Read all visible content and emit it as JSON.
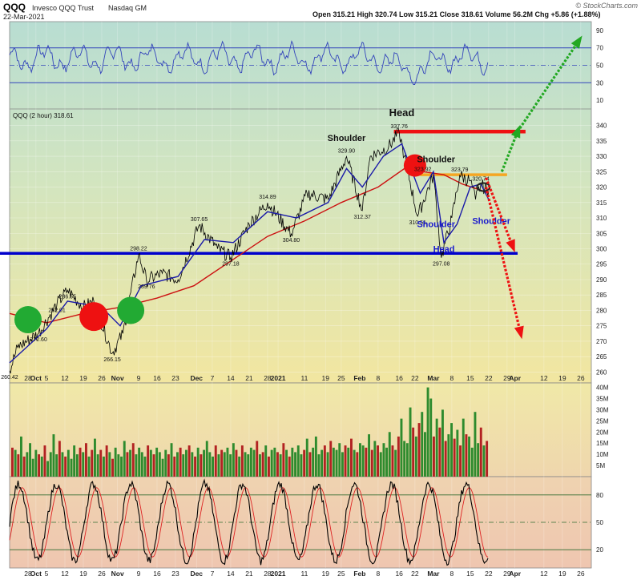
{
  "header": {
    "ticker": "QQQ",
    "name": "Invesco QQQ Trust",
    "exchange": "Nasdaq GM",
    "date": "22-Mar-2021",
    "ohlc_text": "Open 315.21  High 320.74  Low 315.21  Close 318.61  Volume 56.2M  Chg +5.86 (+1.88%)",
    "brand": "© StockCharts.com"
  },
  "colors": {
    "price_line": "#000000",
    "ma_short": "#1a1aa8",
    "ma_long": "#cc1111",
    "support": "#0000cc",
    "resistance": "#ee1111",
    "neckline": "#f5a623",
    "bull_arrow": "#22a822",
    "bear_arrow": "#ee1111",
    "volume_up": "#2e8b2e",
    "volume_down": "#b22222",
    "rsi_line": "#3344bb",
    "stoch_k": "#000000",
    "stoch_d": "#dd2222"
  },
  "chart_data": {
    "type": "line",
    "price_legend": "QQQ (2 hour) 318.61",
    "x_axis_labels": [
      "28",
      "Oct",
      "5",
      "12",
      "19",
      "26",
      "Nov",
      "9",
      "16",
      "23",
      "Dec",
      "7",
      "14",
      "21",
      "28",
      "2021",
      "11",
      "19",
      "25",
      "Feb",
      "8",
      "16",
      "22",
      "Mar",
      "8",
      "15",
      "22",
      "29",
      "Apr",
      "12",
      "19",
      "26"
    ],
    "price_axis": [
      260,
      265,
      270,
      275,
      280,
      285,
      290,
      295,
      300,
      305,
      310,
      315,
      320,
      325,
      330,
      335,
      340
    ],
    "ylim": [
      257,
      343
    ],
    "price_series": {
      "x": [
        "2020-09-21",
        "2020-09-24",
        "2020-10-02",
        "2020-10-09",
        "2020-10-13",
        "2020-10-19",
        "2020-10-23",
        "2020-10-30",
        "2020-11-03",
        "2020-11-09",
        "2020-11-12",
        "2020-11-18",
        "2020-11-24",
        "2020-12-02",
        "2020-12-09",
        "2020-12-14",
        "2020-12-21",
        "2020-12-28",
        "2021-01-06",
        "2021-01-12",
        "2021-01-20",
        "2021-01-27",
        "2021-02-02",
        "2021-02-05",
        "2021-02-12",
        "2021-02-16",
        "2021-02-18",
        "2021-02-23",
        "2021-03-01",
        "2021-03-04",
        "2021-03-08",
        "2021-03-11",
        "2021-03-15",
        "2021-03-17",
        "2021-03-19",
        "2021-03-22"
      ],
      "values": [
        260.42,
        268,
        272.6,
        282.01,
        286.55,
        281,
        283,
        266.15,
        272.5,
        298.22,
        289.76,
        292,
        290,
        307.65,
        300,
        297.18,
        308,
        314.89,
        304.8,
        318,
        316,
        329.9,
        312.37,
        330,
        333,
        337.76,
        330,
        310.51,
        324,
        297.08,
        310,
        323.79,
        322,
        316,
        320.74,
        318.61
      ]
    },
    "ma_short": {
      "x": [
        "2020-09-21",
        "2020-10-05",
        "2020-10-13",
        "2020-10-26",
        "2020-11-02",
        "2020-11-10",
        "2020-11-24",
        "2020-12-04",
        "2020-12-15",
        "2020-12-28",
        "2021-01-08",
        "2021-01-20",
        "2021-01-27",
        "2021-02-02",
        "2021-02-10",
        "2021-02-17",
        "2021-02-24",
        "2021-03-01",
        "2021-03-05",
        "2021-03-10",
        "2021-03-15",
        "2021-03-19",
        "2021-03-22"
      ],
      "values": [
        263,
        274,
        283,
        281,
        275,
        288,
        291,
        303,
        302,
        312,
        310,
        315,
        326,
        320,
        330,
        334,
        318,
        325,
        302,
        308,
        320,
        321,
        316
      ]
    },
    "ma_long": {
      "x": [
        "2020-09-21",
        "2020-10-05",
        "2020-10-19",
        "2020-11-02",
        "2020-11-16",
        "2020-11-30",
        "2020-12-14",
        "2020-12-28",
        "2021-01-11",
        "2021-01-25",
        "2021-02-08",
        "2021-02-18",
        "2021-02-25",
        "2021-03-05",
        "2021-03-12",
        "2021-03-19",
        "2021-03-22"
      ],
      "values": [
        279,
        276,
        279,
        281,
        284,
        288,
        296,
        304,
        309,
        315,
        320,
        326,
        325,
        324,
        321,
        319,
        318
      ]
    },
    "value_labels": [
      {
        "date": "2020-09-21",
        "value": 260.42,
        "text": "260.42"
      },
      {
        "date": "2020-10-02",
        "value": 272.6,
        "text": "272.60"
      },
      {
        "date": "2020-10-09",
        "value": 282.01,
        "text": "282.01"
      },
      {
        "date": "2020-10-13",
        "value": 286.55,
        "text": "286.55"
      },
      {
        "date": "2020-10-30",
        "value": 266.15,
        "text": "266.15"
      },
      {
        "date": "2020-11-09",
        "value": 298.22,
        "text": "298.22"
      },
      {
        "date": "2020-11-12",
        "value": 289.76,
        "text": "289.76"
      },
      {
        "date": "2020-12-02",
        "value": 307.65,
        "text": "307.65"
      },
      {
        "date": "2020-12-14",
        "value": 297.18,
        "text": "297.18"
      },
      {
        "date": "2020-12-28",
        "value": 314.89,
        "text": "314.89"
      },
      {
        "date": "2021-01-06",
        "value": 304.8,
        "text": "304.80"
      },
      {
        "date": "2021-01-27",
        "value": 329.9,
        "text": "329.90"
      },
      {
        "date": "2021-02-02",
        "value": 312.37,
        "text": "312.37"
      },
      {
        "date": "2021-02-16",
        "value": 337.76,
        "text": "337.76"
      },
      {
        "date": "2021-02-23",
        "value": 310.51,
        "text": "310.51"
      },
      {
        "date": "2021-02-25",
        "value": 323.92,
        "text": "323.92"
      },
      {
        "date": "2021-03-04",
        "value": 297.08,
        "text": "297.08"
      },
      {
        "date": "2021-03-11",
        "value": 323.79,
        "text": "323.79"
      },
      {
        "date": "2021-03-19",
        "value": 320.74,
        "text": "320.74"
      }
    ],
    "annotations": [
      {
        "text": "Head",
        "date": "2021-02-17",
        "value": 343,
        "color": "#111111"
      },
      {
        "text": "Shoulder",
        "date": "2021-01-27",
        "value": 335,
        "color": "#111111"
      },
      {
        "text": "Shoulder",
        "date": "2021-03-02",
        "value": 328,
        "color": "#111111"
      },
      {
        "text": "Shoulder",
        "date": "2021-03-02",
        "value": 307,
        "color": "#1a1acc"
      },
      {
        "text": "Head",
        "date": "2021-03-05",
        "value": 299,
        "color": "#1a1acc"
      },
      {
        "text": "Shoulder",
        "date": "2021-03-23",
        "value": 308,
        "color": "#1a1acc"
      }
    ],
    "support_level": 298.5,
    "resistance_level": 338,
    "neckline_level": 324,
    "markers": [
      {
        "type": "green-circle",
        "date": "2020-09-28",
        "value": 277
      },
      {
        "type": "red-circle",
        "date": "2020-10-23",
        "value": 278
      },
      {
        "type": "green-circle",
        "date": "2020-11-06",
        "value": 280
      },
      {
        "type": "red-circle",
        "date": "2021-02-22",
        "value": 327
      }
    ],
    "projections": [
      {
        "color": "green",
        "from": [
          "2021-03-27",
          325
        ],
        "to": [
          "2021-04-02",
          338
        ]
      },
      {
        "color": "green",
        "from": [
          "2021-04-02",
          338
        ],
        "to": [
          "2021-04-25",
          90
        ]
      },
      {
        "color": "red",
        "from": [
          "2021-03-21",
          323
        ],
        "to": [
          "2021-03-31",
          300
        ]
      },
      {
        "color": "red",
        "from": [
          "2021-03-21",
          320
        ],
        "to": [
          "2021-04-03",
          272
        ]
      }
    ],
    "rsi_axis": [
      90,
      70,
      50,
      30,
      10
    ],
    "rsi_levels": [
      70,
      30
    ],
    "volume_axis": [
      "40M",
      "35M",
      "30M",
      "25M",
      "20M",
      "15M",
      "10M",
      "5M"
    ],
    "volume_values_M": [
      13,
      12,
      10,
      18,
      9,
      11,
      15,
      8,
      12,
      10,
      9,
      14,
      7,
      11,
      19,
      10,
      16,
      11,
      9,
      12,
      8,
      14,
      10,
      13,
      11,
      15,
      9,
      12,
      17,
      10,
      12,
      9,
      14,
      11,
      8,
      13,
      10,
      9,
      16,
      11,
      12,
      15,
      10,
      13,
      11,
      9,
      14,
      12,
      10,
      13,
      11,
      8,
      12,
      10,
      15,
      9,
      11,
      13,
      10,
      12,
      14,
      11,
      9,
      13,
      10,
      12,
      16,
      11,
      9,
      14,
      10,
      12,
      11,
      13,
      10,
      15,
      12,
      9,
      14,
      11,
      10,
      13,
      12,
      16,
      10,
      11,
      14,
      9,
      12,
      13,
      11,
      10,
      15,
      12,
      9,
      13,
      11,
      14,
      10,
      12,
      17,
      11,
      13,
      18,
      10,
      12,
      14,
      11,
      16,
      13,
      12,
      15,
      11,
      14,
      13,
      17,
      12,
      11,
      15,
      14,
      13,
      19,
      12,
      16,
      14,
      11,
      15,
      13,
      20,
      14,
      12,
      18,
      26,
      16,
      15,
      31,
      22,
      18,
      24,
      29,
      20,
      40,
      35,
      18,
      26,
      22,
      30,
      16,
      19,
      24,
      17,
      21,
      14,
      26,
      19,
      18,
      13,
      29,
      15,
      22,
      14,
      16
    ],
    "stoch_axis": [
      80,
      50,
      20
    ],
    "stoch_levels": [
      80,
      20
    ]
  }
}
